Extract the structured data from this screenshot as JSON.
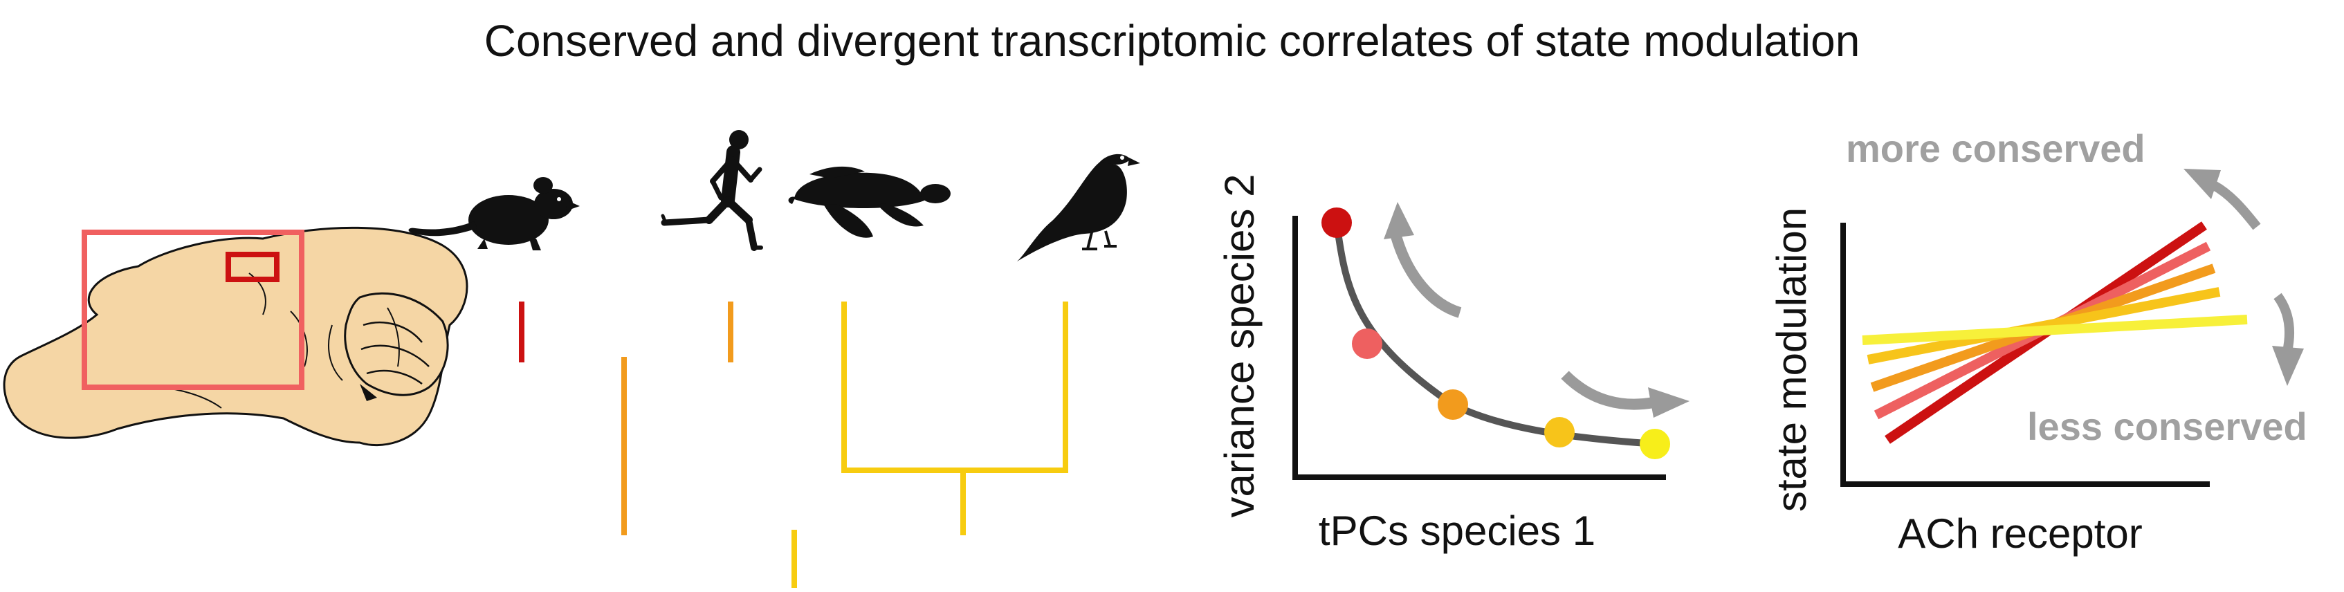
{
  "title": "Conserved and divergent transcriptomic correlates of state modulation",
  "species_icons": [
    "mouse-icon",
    "running-human-icon",
    "turtle-icon",
    "bird-icon"
  ],
  "tree_colors": {
    "red": "#cc1111",
    "salmon": "#ee6060",
    "orange": "#f29b1d",
    "yellow": "#f7cc10"
  },
  "panel_variance": {
    "xlabel": "tPCs species 1",
    "ylabel": "variance species 2",
    "point_colors": [
      "#cc1111",
      "#ee6060",
      "#f29b1d",
      "#f7c41a",
      "#f7ee1a"
    ]
  },
  "panel_modulation": {
    "xlabel": "ACh receptor",
    "ylabel": "state modulation",
    "more_label": "more conserved",
    "less_label": "less conserved",
    "line_colors": [
      "#cc1111",
      "#ee6060",
      "#f29b1d",
      "#f7c41a",
      "#f7f03a"
    ]
  },
  "colors": {
    "brain": "#f5d6a5",
    "box_outer": "#f06060",
    "box_inner": "#cc1111",
    "arrow": "#9a9a9a",
    "label_gray": "#a0a0a0"
  }
}
